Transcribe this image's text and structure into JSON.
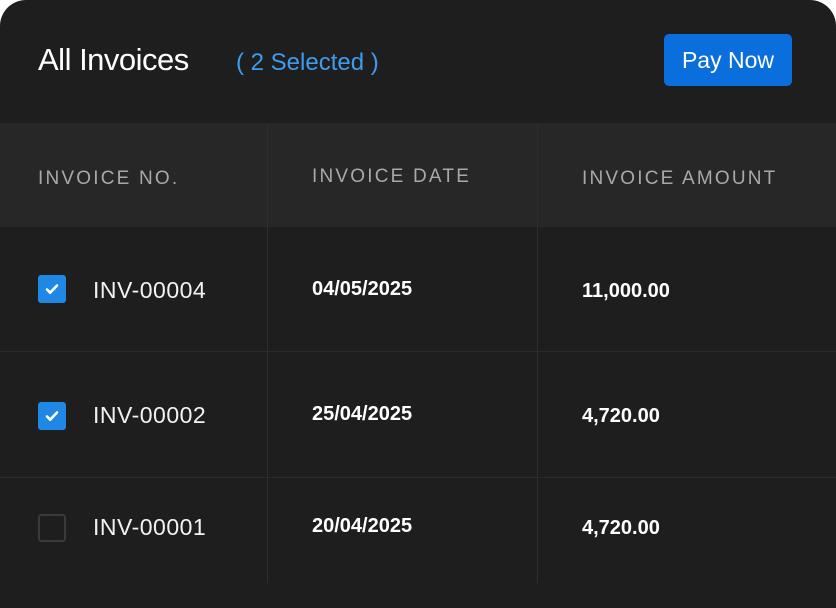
{
  "header": {
    "title": "All Invoices",
    "selected_label": "( 2 Selected )",
    "pay_button": "Pay Now"
  },
  "colors": {
    "accent": "#0a6fdc",
    "selected_text": "#3d9cf0",
    "checkbox": "#1f88e5",
    "background": "#1e1e1e"
  },
  "table": {
    "columns": [
      "INVOICE NO.",
      "INVOICE DATE",
      "INVOICE AMOUNT"
    ],
    "rows": [
      {
        "checked": true,
        "invoice_no": "INV-00004",
        "date": "04/05/2025",
        "amount": "11,000.00"
      },
      {
        "checked": true,
        "invoice_no": "INV-00002",
        "date": "25/04/2025",
        "amount": "4,720.00"
      },
      {
        "checked": false,
        "invoice_no": "INV-00001",
        "date": "20/04/2025",
        "amount": "4,720.00"
      }
    ]
  }
}
